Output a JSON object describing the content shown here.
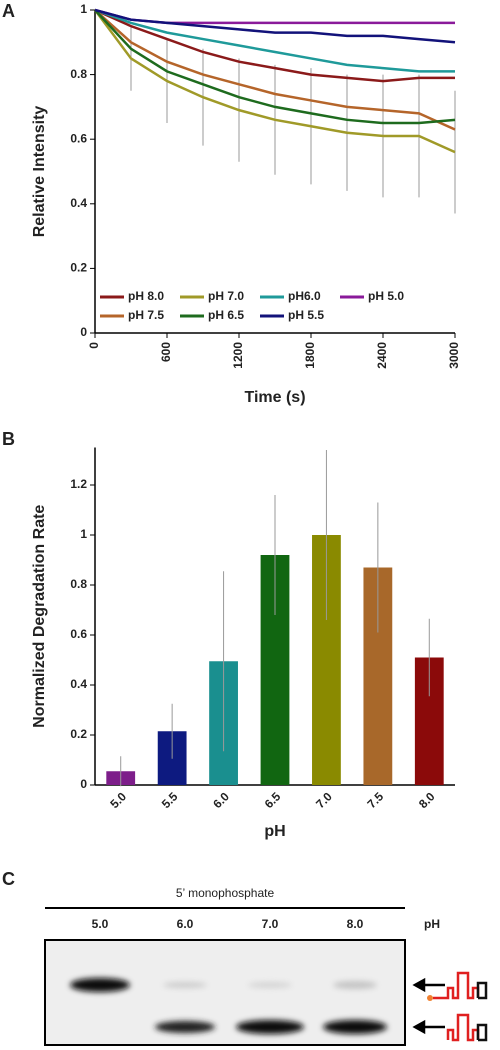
{
  "panel_labels": [
    "A",
    "B",
    "C"
  ],
  "chart_data": [
    {
      "type": "line",
      "xlabel": "Time (s)",
      "ylabel": "Relative Intensity",
      "xlim": [
        0,
        3000
      ],
      "xticks": [
        0,
        600,
        1200,
        1800,
        2400,
        3000
      ],
      "ylim": [
        0,
        1
      ],
      "yticks": [
        0,
        0.2,
        0.4,
        0.6,
        0.8,
        1
      ],
      "x": [
        0,
        300,
        600,
        900,
        1200,
        1500,
        1800,
        2100,
        2400,
        2700,
        3000
      ],
      "series": [
        {
          "name": "pH 8.0",
          "color": "#8b1a1a",
          "values": [
            1,
            0.95,
            0.91,
            0.87,
            0.84,
            0.82,
            0.8,
            0.79,
            0.78,
            0.79,
            0.79
          ]
        },
        {
          "name": "pH 7.0",
          "color": "#a09a28",
          "values": [
            1,
            0.85,
            0.78,
            0.73,
            0.69,
            0.66,
            0.64,
            0.62,
            0.61,
            0.61,
            0.56
          ],
          "errors": [
            0,
            0.1,
            0.13,
            0.15,
            0.16,
            0.17,
            0.18,
            0.18,
            0.19,
            0.19,
            0.19
          ]
        },
        {
          "name": "pH6.0",
          "color": "#1f9a9a",
          "values": [
            1,
            0.96,
            0.93,
            0.91,
            0.89,
            0.87,
            0.85,
            0.83,
            0.82,
            0.81,
            0.81
          ]
        },
        {
          "name": "pH 5.0",
          "color": "#8a1a9a",
          "values": [
            1,
            0.97,
            0.96,
            0.96,
            0.96,
            0.96,
            0.96,
            0.96,
            0.96,
            0.96,
            0.96
          ]
        },
        {
          "name": "pH 7.5",
          "color": "#b5652a",
          "values": [
            1,
            0.9,
            0.84,
            0.8,
            0.77,
            0.74,
            0.72,
            0.7,
            0.69,
            0.68,
            0.63
          ]
        },
        {
          "name": "pH 6.5",
          "color": "#1e6b1e",
          "values": [
            1,
            0.88,
            0.81,
            0.77,
            0.73,
            0.7,
            0.68,
            0.66,
            0.65,
            0.65,
            0.66
          ]
        },
        {
          "name": "pH 5.5",
          "color": "#12127a",
          "values": [
            1,
            0.97,
            0.96,
            0.95,
            0.94,
            0.93,
            0.93,
            0.92,
            0.92,
            0.91,
            0.9
          ]
        }
      ]
    },
    {
      "type": "bar",
      "xlabel": "pH",
      "ylabel": "Normalized Degradation Rate",
      "categories": [
        "5.0",
        "5.5",
        "6.0",
        "6.5",
        "7.0",
        "7.5",
        "8.0"
      ],
      "values": [
        0.055,
        0.215,
        0.495,
        0.92,
        1.0,
        0.87,
        0.51
      ],
      "errors": [
        0.06,
        0.11,
        0.36,
        0.24,
        0.34,
        0.26,
        0.155
      ],
      "colors": [
        "#7d1e8a",
        "#0d1a80",
        "#1a8f8f",
        "#116611",
        "#8a8a00",
        "#a8682a",
        "#8b0a0a"
      ],
      "ylim": [
        0,
        1.35
      ],
      "yticks": [
        0,
        0.2,
        0.4,
        0.6,
        0.8,
        1,
        1.2
      ]
    }
  ],
  "gel": {
    "title": "5’ monophosphate",
    "lanes": [
      "5.0",
      "6.0",
      "7.0",
      "8.0"
    ],
    "axis_label": "pH"
  }
}
